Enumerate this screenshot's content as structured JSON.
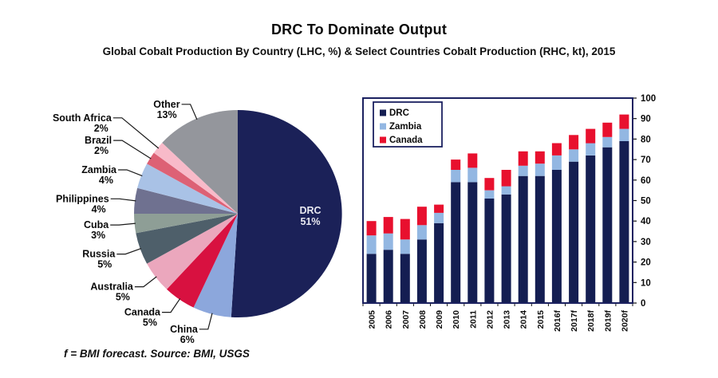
{
  "header": {
    "title": "DRC To Dominate Output",
    "subtitle": "Global Cobalt Production By Country (LHC, %) & Select Countries Cobalt Production (RHC, kt), 2015"
  },
  "footer": {
    "note": "f = BMI forecast. Source: BMI, USGS"
  },
  "chart_data": [
    {
      "type": "pie",
      "title": "Global Cobalt Production By Country (LHC, %)",
      "unit": "%",
      "start_angle_deg": 0,
      "direction": "clockwise",
      "slices": [
        {
          "label": "DRC",
          "value": 51,
          "color": "#1b2158",
          "label_inside": true,
          "text_color": "#e8e8f0"
        },
        {
          "label": "China",
          "value": 6,
          "color": "#8ca7dc"
        },
        {
          "label": "Canada",
          "value": 5,
          "color": "#d81140"
        },
        {
          "label": "Australia",
          "value": 5,
          "color": "#eba7bd"
        },
        {
          "label": "Russia",
          "value": 5,
          "color": "#4e5f6a"
        },
        {
          "label": "Cuba",
          "value": 3,
          "color": "#8e9e96"
        },
        {
          "label": "Philippines",
          "value": 4,
          "color": "#6f7190"
        },
        {
          "label": "Zambia",
          "value": 4,
          "color": "#a9c2e6"
        },
        {
          "label": "Brazil",
          "value": 2,
          "color": "#dd6175"
        },
        {
          "label": "South Africa",
          "value": 2,
          "color": "#f8bac9"
        },
        {
          "label": "Other",
          "value": 13,
          "color": "#94969c"
        }
      ]
    },
    {
      "type": "bar",
      "stacked": true,
      "title": "Select Countries Cobalt Production (RHC, kt), 2015",
      "categories": [
        "2005",
        "2006",
        "2007",
        "2008",
        "2009",
        "2010",
        "2011",
        "2012",
        "2013",
        "2014",
        "2015",
        "2016f",
        "2017f",
        "2018f",
        "2019f",
        "2020f"
      ],
      "series": [
        {
          "name": "DRC",
          "color": "#141e52",
          "values": [
            24,
            26,
            24,
            31,
            39,
            59,
            59,
            51,
            53,
            62,
            62,
            65,
            69,
            72,
            76,
            79
          ]
        },
        {
          "name": "Zambia",
          "color": "#93b7e2",
          "values": [
            9,
            8,
            7,
            7,
            5,
            6,
            7,
            4,
            4,
            5,
            6,
            7,
            6,
            6,
            5,
            6
          ]
        },
        {
          "name": "Canada",
          "color": "#e8102e",
          "values": [
            7,
            8,
            10,
            9,
            4,
            5,
            7,
            6,
            8,
            7,
            6,
            6,
            7,
            7,
            7,
            7
          ]
        }
      ],
      "ylim": [
        0,
        100
      ],
      "ytick_step": 10,
      "yaxis_side": "right",
      "grid": false,
      "legend_position": "top-left",
      "frame_color": "#1b2160"
    }
  ]
}
